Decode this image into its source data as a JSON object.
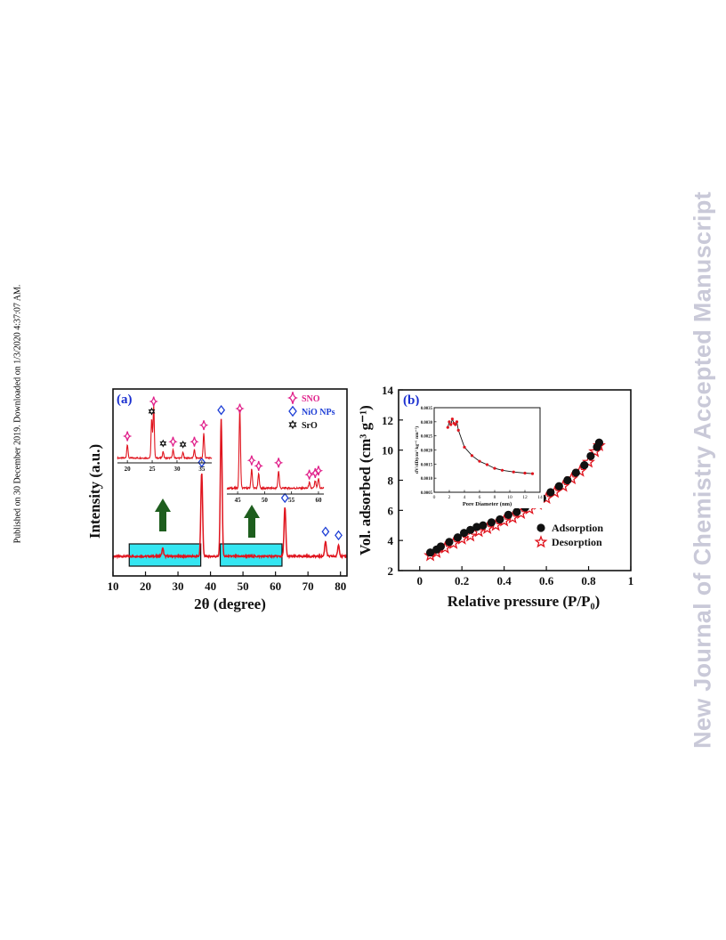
{
  "margin_note": "Published on 30 December 2019. Downloaded on 1/3/2020 4:37:07 AM.",
  "watermark": "New Journal of Chemistry Accepted Manuscript",
  "colors": {
    "xrd": "#e0141e",
    "sno": "#e0208a",
    "nio": "#1e3fd6",
    "sro": "#111111",
    "highlight": "#35e6f2",
    "arrow": "#1e5e1e",
    "adsorption": "#111111",
    "desorption": "#e0141e",
    "panel_label": "#1a2fd0"
  },
  "chart_data": [
    {
      "panel": "(a)",
      "type": "line",
      "xlabel": "2θ (degree)",
      "ylabel": "Intensity (a.u.)",
      "xlim": [
        10,
        82
      ],
      "xticks": [
        10,
        20,
        30,
        40,
        50,
        60,
        70,
        80
      ],
      "legend": [
        "SNO",
        "NiO NPs",
        "SrO"
      ],
      "legend_position": "top-right",
      "peaks": [
        {
          "x": 25.3,
          "height": 0.04,
          "phase": "SNO"
        },
        {
          "x": 37.3,
          "height": 0.45,
          "phase": "NiO NPs"
        },
        {
          "x": 43.3,
          "height": 0.73,
          "phase": "NiO NPs"
        },
        {
          "x": 62.9,
          "height": 0.26,
          "phase": "NiO NPs"
        },
        {
          "x": 75.4,
          "height": 0.08,
          "phase": "NiO NPs"
        },
        {
          "x": 79.4,
          "height": 0.06,
          "phase": "NiO NPs"
        }
      ],
      "highlight_ranges": [
        [
          15,
          37
        ],
        [
          43,
          62
        ]
      ],
      "insets": [
        {
          "xlim": [
            18,
            37
          ],
          "xticks": [
            20,
            25,
            30,
            35
          ],
          "peaks": [
            {
              "x": 20,
              "h": 0.25,
              "m": "SNO"
            },
            {
              "x": 24.9,
              "h": 0.7,
              "m": "SrO"
            },
            {
              "x": 25.3,
              "h": 0.95,
              "m": "SNO"
            },
            {
              "x": 27.2,
              "h": 0.12,
              "m": "SrO"
            },
            {
              "x": 29.2,
              "h": 0.15,
              "m": "SNO"
            },
            {
              "x": 31.2,
              "h": 0.1,
              "m": "SrO"
            },
            {
              "x": 33.5,
              "h": 0.15,
              "m": "SNO"
            },
            {
              "x": 35.4,
              "h": 0.45,
              "m": "SNO"
            }
          ]
        },
        {
          "xlim": [
            43,
            61
          ],
          "xticks": [
            45,
            50,
            55,
            60
          ],
          "peaks": [
            {
              "x": 45.4,
              "h": 1.0,
              "m": "SNO"
            },
            {
              "x": 47.6,
              "h": 0.25,
              "m": "SNO"
            },
            {
              "x": 48.9,
              "h": 0.18,
              "m": "SNO"
            },
            {
              "x": 52.6,
              "h": 0.22,
              "m": "SNO"
            },
            {
              "x": 58.3,
              "h": 0.07,
              "m": "SNO"
            },
            {
              "x": 59.4,
              "h": 0.09,
              "m": "SNO"
            },
            {
              "x": 60.0,
              "h": 0.12,
              "m": "SNO"
            }
          ]
        }
      ]
    },
    {
      "panel": "(b)",
      "type": "scatter",
      "xlabel": "Relative pressure (P/P₀)",
      "ylabel": "Vol. adsorbed (cm³ g⁻¹)",
      "xlim": [
        -0.1,
        1.0
      ],
      "ylim": [
        2,
        14
      ],
      "xticks": [
        0.0,
        0.2,
        0.4,
        0.6,
        0.8,
        1.0
      ],
      "yticks": [
        2,
        4,
        6,
        8,
        10,
        12,
        14
      ],
      "legend_position": "bottom-right",
      "series": [
        {
          "name": "Adsorption",
          "marker": "sphere",
          "x": [
            0.05,
            0.08,
            0.1,
            0.14,
            0.18,
            0.21,
            0.24,
            0.27,
            0.3,
            0.34,
            0.38,
            0.42,
            0.46,
            0.5,
            0.54,
            0.58,
            0.62,
            0.66,
            0.7,
            0.74,
            0.78,
            0.81,
            0.84,
            0.85
          ],
          "y": [
            3.2,
            3.4,
            3.6,
            3.9,
            4.2,
            4.5,
            4.7,
            4.9,
            5.0,
            5.2,
            5.4,
            5.7,
            5.9,
            6.2,
            6.5,
            6.8,
            7.2,
            7.6,
            8.0,
            8.5,
            9.0,
            9.6,
            10.2,
            10.5
          ]
        },
        {
          "name": "Desorption",
          "marker": "star",
          "x": [
            0.05,
            0.08,
            0.12,
            0.16,
            0.2,
            0.24,
            0.28,
            0.32,
            0.36,
            0.4,
            0.44,
            0.48,
            0.52,
            0.56,
            0.6,
            0.64,
            0.68,
            0.72,
            0.76,
            0.8,
            0.83,
            0.85
          ],
          "y": [
            3.0,
            3.2,
            3.5,
            3.8,
            4.1,
            4.3,
            4.6,
            4.8,
            5.0,
            5.3,
            5.5,
            5.8,
            6.1,
            6.4,
            6.8,
            7.2,
            7.6,
            8.1,
            8.6,
            9.2,
            9.9,
            10.3
          ]
        }
      ],
      "inset": {
        "type": "line",
        "xlabel": "Pore Diameter (nm)",
        "ylabel": "dV/dD(cm³ kg⁻¹ nm⁻¹)",
        "xlim": [
          0,
          14
        ],
        "ylim": [
          0.0005,
          0.0035
        ],
        "xticks": [
          0,
          2,
          4,
          6,
          8,
          10,
          12,
          14
        ],
        "yticks": [
          "0.0005",
          "0.0010",
          "0.0015",
          "0.0020",
          "0.0025",
          "0.0030",
          "0.0035"
        ],
        "x": [
          1.8,
          2.0,
          2.2,
          2.4,
          2.6,
          2.8,
          3.0,
          3.2,
          4.0,
          5.0,
          6.0,
          7.0,
          8.0,
          9.0,
          10.5,
          12.0,
          13.0
        ],
        "y": [
          0.0028,
          0.003,
          0.0029,
          0.0031,
          0.00295,
          0.0029,
          0.003,
          0.0027,
          0.0021,
          0.0018,
          0.0016,
          0.00148,
          0.00135,
          0.00128,
          0.00122,
          0.00118,
          0.00116
        ]
      }
    }
  ]
}
